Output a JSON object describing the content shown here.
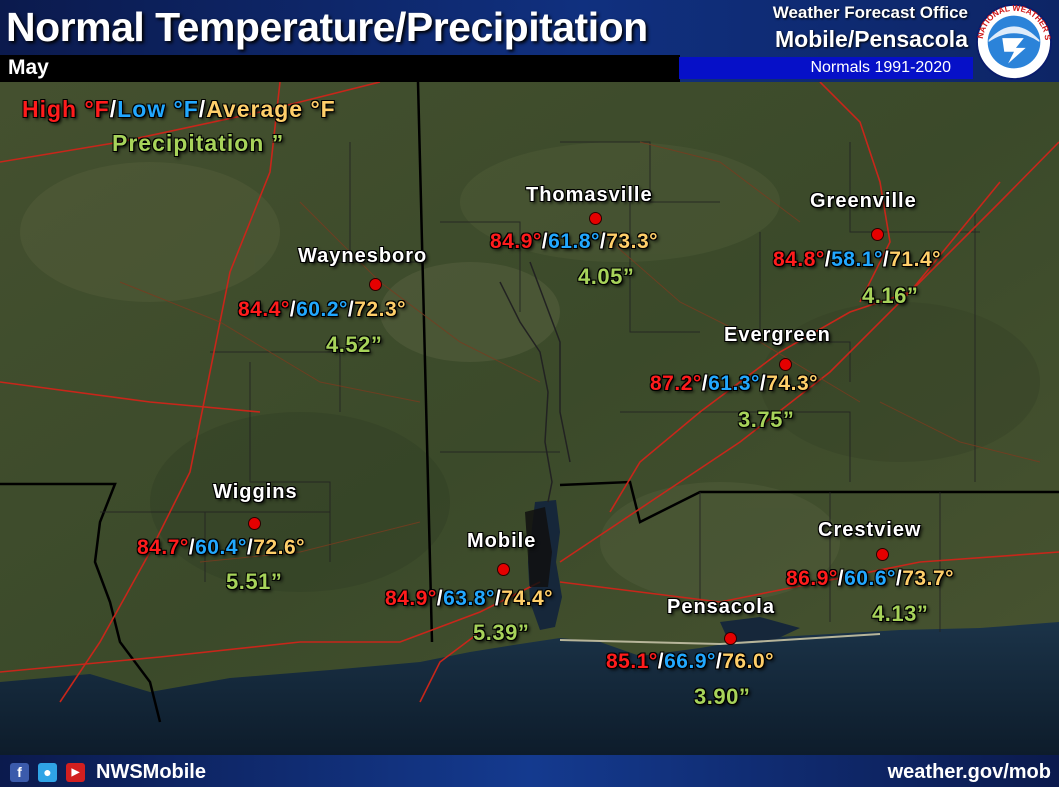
{
  "header": {
    "title": "Normal Temperature/Precipitation",
    "month": "May",
    "office_line": "Weather Forecast Office",
    "city_line": "Mobile/Pensacola",
    "normals": "Normals 1991-2020",
    "logo_text": "NATIONAL WEATHER SERVICE"
  },
  "legend": {
    "high": "High °F",
    "low": "Low °F",
    "avg": "Average °F",
    "slash": "/",
    "precip": "Precipitation ”"
  },
  "colors": {
    "high": "#ff1c1c",
    "low": "#22a8ff",
    "average": "#ffcf6a",
    "precipitation": "#a7d35a",
    "city_dot": "#e50000"
  },
  "stations": [
    {
      "name": "Thomasville",
      "high": "84.9°",
      "low": "61.8°",
      "avg": "73.3°",
      "precip": "4.05”"
    },
    {
      "name": "Greenville",
      "high": "84.8°",
      "low": "58.1°",
      "avg": "71.4°",
      "precip": "4.16”"
    },
    {
      "name": "Waynesboro",
      "high": "84.4°",
      "low": "60.2°",
      "avg": "72.3°",
      "precip": "4.52”"
    },
    {
      "name": "Evergreen",
      "high": "87.2°",
      "low": "61.3°",
      "avg": "74.3°",
      "precip": "3.75”"
    },
    {
      "name": "Wiggins",
      "high": "84.7°",
      "low": "60.4°",
      "avg": "72.6°",
      "precip": "5.51”"
    },
    {
      "name": "Mobile",
      "high": "84.9°",
      "low": "63.8°",
      "avg": "74.4°",
      "precip": "5.39”"
    },
    {
      "name": "Crestview",
      "high": "86.9°",
      "low": "60.6°",
      "avg": "73.7°",
      "precip": "4.13”"
    },
    {
      "name": "Pensacola",
      "high": "85.1°",
      "low": "66.9°",
      "avg": "76.0°",
      "precip": "3.90”"
    }
  ],
  "footer": {
    "icons": [
      "facebook-icon",
      "twitter-icon",
      "youtube-icon"
    ],
    "handle": "NWSMobile",
    "website": "weather.gov/mob"
  }
}
